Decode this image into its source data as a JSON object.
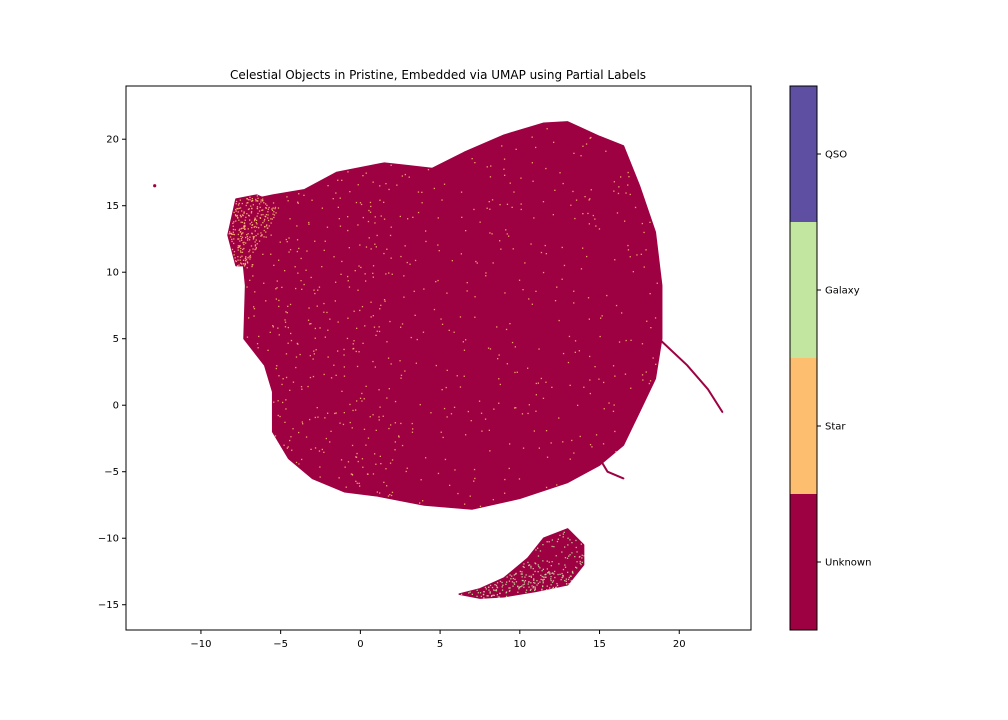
{
  "chart_data": {
    "type": "scatter",
    "title": "Celestial Objects in Pristine, Embedded via UMAP using Partial Labels",
    "xlabel": "",
    "ylabel": "",
    "xlim": [
      -14.7,
      24.5
    ],
    "ylim": [
      -16.9,
      24.0
    ],
    "xticks": [
      -10,
      -5,
      0,
      5,
      10,
      15,
      20
    ],
    "yticks": [
      -15,
      -10,
      -5,
      0,
      5,
      10,
      15,
      20
    ],
    "grid": false,
    "legend": "colorbar-right",
    "colorbar": {
      "categories": [
        {
          "label": "Unknown",
          "color": "#9e0142"
        },
        {
          "label": "Star",
          "color": "#fdbe6f"
        },
        {
          "label": "Galaxy",
          "color": "#c2e5a0"
        },
        {
          "label": "QSO",
          "color": "#5e4fa2"
        }
      ]
    },
    "regions": [
      {
        "name": "Unknown",
        "cluster": "main",
        "outline": [
          [
            -7.2,
            9.0
          ],
          [
            -7.5,
            12.5
          ],
          [
            -7.5,
            15.3
          ],
          [
            -5.5,
            15.8
          ],
          [
            -3.5,
            16.2
          ],
          [
            -1.5,
            17.5
          ],
          [
            1.5,
            18.2
          ],
          [
            3.0,
            18.0
          ],
          [
            4.5,
            17.8
          ],
          [
            6.5,
            19.0
          ],
          [
            9.0,
            20.3
          ],
          [
            11.5,
            21.2
          ],
          [
            13.0,
            21.3
          ],
          [
            15.0,
            20.2
          ],
          [
            16.5,
            19.5
          ],
          [
            17.5,
            16.5
          ],
          [
            18.5,
            13.0
          ],
          [
            18.9,
            9.0
          ],
          [
            18.9,
            5.0
          ],
          [
            18.5,
            2.0
          ],
          [
            17.5,
            -0.5
          ],
          [
            16.5,
            -3.0
          ],
          [
            15.0,
            -4.5
          ],
          [
            13.0,
            -5.8
          ],
          [
            10.0,
            -7.0
          ],
          [
            7.0,
            -7.8
          ],
          [
            4.0,
            -7.5
          ],
          [
            1.0,
            -6.8
          ],
          [
            -1.0,
            -6.5
          ],
          [
            -3.0,
            -5.5
          ],
          [
            -4.5,
            -4.0
          ],
          [
            -5.5,
            -2.0
          ],
          [
            -5.5,
            1.0
          ],
          [
            -6.0,
            3.0
          ],
          [
            -7.3,
            5.0
          ]
        ]
      },
      {
        "name": "Unknown",
        "cluster": "upper-left-lobe",
        "outline": [
          [
            -8.3,
            12.8
          ],
          [
            -7.8,
            15.5
          ],
          [
            -6.5,
            15.8
          ],
          [
            -5.0,
            15.0
          ],
          [
            -6.0,
            13.0
          ],
          [
            -7.2,
            10.5
          ],
          [
            -7.8,
            10.5
          ]
        ]
      },
      {
        "name": "Unknown",
        "cluster": "lower-island",
        "outline": [
          [
            6.2,
            -14.2
          ],
          [
            7.5,
            -13.8
          ],
          [
            9.0,
            -13.0
          ],
          [
            10.5,
            -11.5
          ],
          [
            11.5,
            -10.0
          ],
          [
            13.0,
            -9.3
          ],
          [
            14.0,
            -10.5
          ],
          [
            14.0,
            -12.0
          ],
          [
            13.0,
            -13.5
          ],
          [
            11.0,
            -14.0
          ],
          [
            9.0,
            -14.4
          ],
          [
            7.5,
            -14.5
          ]
        ]
      },
      {
        "name": "Unknown",
        "cluster": "isolated-point",
        "outline": [
          [
            -12.9,
            16.5
          ]
        ]
      }
    ],
    "streaks": [
      {
        "name": "Unknown",
        "points": [
          [
            18.9,
            4.8
          ],
          [
            20.5,
            3.0
          ],
          [
            21.8,
            1.2
          ],
          [
            22.7,
            -0.5
          ]
        ]
      },
      {
        "name": "Unknown",
        "points": [
          [
            15.0,
            -4.0
          ],
          [
            15.5,
            -5.0
          ],
          [
            16.5,
            -5.5
          ]
        ]
      }
    ],
    "highlights": [
      {
        "name": "Star",
        "density": "sparse",
        "area": "main"
      },
      {
        "name": "Star",
        "density": "dense",
        "area": "upper-left-lobe"
      },
      {
        "name": "Galaxy",
        "density": "dense",
        "area": "lower-island"
      }
    ]
  }
}
